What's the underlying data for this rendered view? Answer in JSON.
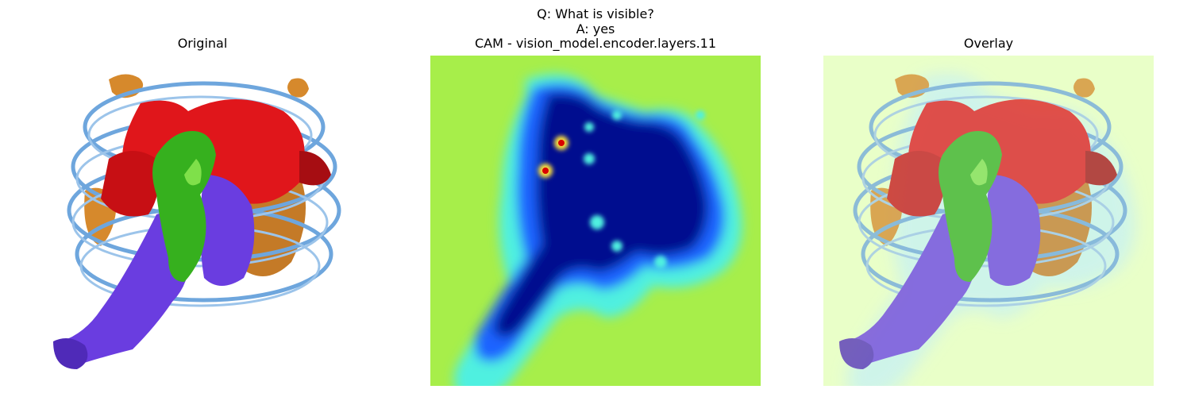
{
  "figure": {
    "suptitle_question": "Q: What is visible?",
    "suptitle_answer": "A: yes"
  },
  "panels": [
    {
      "title": "Original"
    },
    {
      "title": "CAM - vision_model.encoder.layers.11"
    },
    {
      "title": "Overlay"
    }
  ],
  "colors": {
    "dna": "#6ea6dd",
    "red_protein": "#e0161b",
    "green_protein": "#36b01e",
    "purple_protein": "#6a3de0",
    "orange_protein": "#d6892c",
    "cam_background": "#a7ee4a",
    "cam_low": "#000a8f",
    "cam_mid": "#1e64ff",
    "cam_cyan": "#4ff0e0",
    "cam_yellow": "#ffe13a",
    "cam_red": "#d80000",
    "overlay_tint": "#eaffc9"
  }
}
